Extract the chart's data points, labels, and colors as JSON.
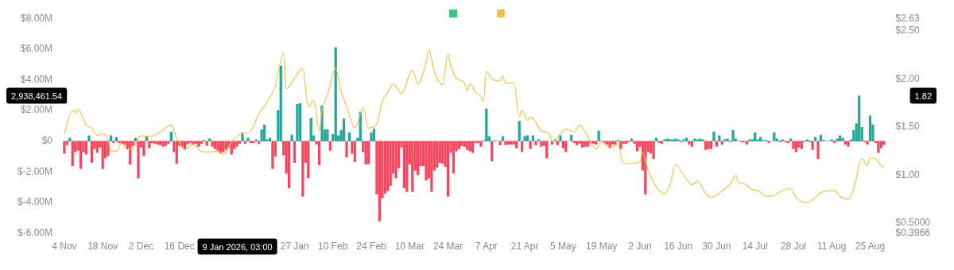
{
  "chart_data": {
    "type": "bar",
    "grid": false,
    "xlim": [
      "2025-11-02",
      "2026-09-01"
    ],
    "xticks": [
      {
        "value": "2025-11-04",
        "label": "4 Nov"
      },
      {
        "value": "2025-11-18",
        "label": "18 Nov"
      },
      {
        "value": "2025-12-02",
        "label": "2 Dec"
      },
      {
        "value": "2025-12-16",
        "label": "16 Dec"
      },
      {
        "value": "2026-01-27",
        "label": "27 Jan"
      },
      {
        "value": "2026-02-10",
        "label": "10 Feb"
      },
      {
        "value": "2026-02-24",
        "label": "24 Feb"
      },
      {
        "value": "2026-03-10",
        "label": "10 Mar"
      },
      {
        "value": "2026-03-24",
        "label": "24 Mar"
      },
      {
        "value": "2026-04-07",
        "label": "7 Apr"
      },
      {
        "value": "2026-04-21",
        "label": "21 Apr"
      },
      {
        "value": "2026-05-05",
        "label": "5 May"
      },
      {
        "value": "2026-05-19",
        "label": "19 May"
      },
      {
        "value": "2026-06-02",
        "label": "2 Jun"
      },
      {
        "value": "2026-06-16",
        "label": "16 Jun"
      },
      {
        "value": "2026-06-30",
        "label": "30 Jun"
      },
      {
        "value": "2026-07-14",
        "label": "14 Jul"
      },
      {
        "value": "2026-07-28",
        "label": "28 Jul"
      },
      {
        "value": "2026-08-11",
        "label": "11 Aug"
      },
      {
        "value": "2026-08-25",
        "label": "25 Aug"
      }
    ],
    "ylim": [
      -6,
      8
    ],
    "yticks": [
      {
        "value": -6,
        "label": "$-6.00M"
      },
      {
        "value": -4,
        "label": "$-4.00M"
      },
      {
        "value": -2,
        "label": "$-2.00M"
      },
      {
        "value": 0,
        "label": "$0"
      },
      {
        "value": 2,
        "label": "$2.00M"
      },
      {
        "value": 4,
        "label": "$4.00M"
      },
      {
        "value": 6,
        "label": "$6.00M"
      },
      {
        "value": 8,
        "label": "$8.00M"
      }
    ],
    "y2lim": [
      0.3966,
      2.63
    ],
    "y2ticks": [
      {
        "value": 0.3966,
        "label": "$0.3966"
      },
      {
        "value": 0.5,
        "label": "$0.5000"
      },
      {
        "value": 1,
        "label": "$1.00"
      },
      {
        "value": 1.5,
        "label": "$1.50"
      },
      {
        "value": 2,
        "label": "$2.00"
      },
      {
        "value": 2.5,
        "label": "$2.50"
      },
      {
        "value": 2.63,
        "label": "$2.63"
      }
    ],
    "annotations": [
      "2,938,461.54",
      "9 Jan 2026, 03:00",
      "1.82"
    ],
    "series": [
      {
        "color": "#35c97c",
        "x": [
          "2025-11-04",
          "2025-11-05",
          "2025-11-06",
          "2025-11-07",
          "2025-11-08",
          "2025-11-09",
          "2025-11-10",
          "2025-11-11",
          "2025-11-12",
          "2025-11-13",
          "2025-11-14",
          "2025-11-15",
          "2025-11-16",
          "2025-11-17",
          "2025-11-18",
          "2025-11-19",
          "2025-11-20",
          "2025-11-21",
          "2025-11-22",
          "2025-11-23",
          "2025-11-24",
          "2025-11-25",
          "2025-11-26",
          "2025-11-27",
          "2025-11-28",
          "2025-11-29",
          "2025-11-30",
          "2025-12-01",
          "2025-12-02",
          "2025-12-03",
          "2025-12-04",
          "2025-12-05",
          "2025-12-06",
          "2025-12-07",
          "2025-12-08",
          "2025-12-09",
          "2025-12-10",
          "2025-12-11",
          "2025-12-12",
          "2025-12-13",
          "2025-12-14",
          "2025-12-15",
          "2025-12-16",
          "2025-12-17",
          "2025-12-18",
          "2025-12-19",
          "2025-12-20",
          "2025-12-21",
          "2025-12-22",
          "2025-12-23",
          "2025-12-24",
          "2025-12-25",
          "2025-12-26",
          "2025-12-27",
          "2025-12-28",
          "2025-12-29",
          "2025-12-30",
          "2025-12-31",
          "2026-01-01",
          "2026-01-02",
          "2026-01-03",
          "2026-01-04",
          "2026-01-05",
          "2026-01-06",
          "2026-01-07",
          "2026-01-08",
          "2026-01-09",
          "2026-01-10",
          "2026-01-11",
          "2026-01-12",
          "2026-01-13",
          "2026-01-14",
          "2026-01-15",
          "2026-01-16",
          "2026-01-17",
          "2026-01-18",
          "2026-01-19",
          "2026-01-20",
          "2026-01-21",
          "2026-01-22",
          "2026-01-23",
          "2026-01-24",
          "2026-01-25",
          "2026-01-26",
          "2026-01-27",
          "2026-01-28",
          "2026-01-29",
          "2026-01-30",
          "2026-01-31",
          "2026-02-01",
          "2026-02-02",
          "2026-02-03",
          "2026-02-04",
          "2026-02-05",
          "2026-02-06",
          "2026-02-07",
          "2026-02-08",
          "2026-02-09",
          "2026-02-10",
          "2026-02-11",
          "2026-02-12",
          "2026-02-13",
          "2026-02-14",
          "2026-02-15",
          "2026-02-16",
          "2026-02-17",
          "2026-02-18",
          "2026-02-19",
          "2026-02-20",
          "2026-02-21",
          "2026-02-22",
          "2026-02-23",
          "2026-02-24",
          "2026-02-25",
          "2026-02-26",
          "2026-02-27",
          "2026-02-28",
          "2026-03-01",
          "2026-03-02",
          "2026-03-03",
          "2026-03-04",
          "2026-03-05",
          "2026-03-06",
          "2026-03-07",
          "2026-03-08",
          "2026-03-09",
          "2026-03-10",
          "2026-03-11",
          "2026-03-12",
          "2026-03-13",
          "2026-03-14",
          "2026-03-15",
          "2026-03-16",
          "2026-03-17",
          "2026-03-18",
          "2026-03-19",
          "2026-03-20",
          "2026-03-21",
          "2026-03-22",
          "2026-03-23",
          "2026-03-24",
          "2026-03-25",
          "2026-03-26",
          "2026-03-27",
          "2026-03-28",
          "2026-03-29",
          "2026-03-30",
          "2026-03-31",
          "2026-04-01",
          "2026-04-02",
          "2026-04-03",
          "2026-04-04",
          "2026-04-05",
          "2026-04-06",
          "2026-04-07",
          "2026-04-08",
          "2026-04-09",
          "2026-04-10",
          "2026-04-11",
          "2026-04-12",
          "2026-04-13",
          "2026-04-14",
          "2026-04-15",
          "2026-04-16",
          "2026-04-17",
          "2026-04-18",
          "2026-04-19",
          "2026-04-20",
          "2026-04-21",
          "2026-04-22",
          "2026-04-23",
          "2026-04-24",
          "2026-04-25",
          "2026-04-26",
          "2026-04-27",
          "2026-04-28",
          "2026-04-29",
          "2026-04-30",
          "2026-05-01",
          "2026-05-02",
          "2026-05-03",
          "2026-05-04",
          "2026-05-05",
          "2026-05-06",
          "2026-05-07",
          "2026-05-08",
          "2026-05-09",
          "2026-05-10",
          "2026-05-11",
          "2026-05-12",
          "2026-05-13",
          "2026-05-14",
          "2026-05-15",
          "2026-05-16",
          "2026-05-17",
          "2026-05-18",
          "2026-05-19",
          "2026-05-20",
          "2026-05-21",
          "2026-05-22",
          "2026-05-23",
          "2026-05-24",
          "2026-05-25",
          "2026-05-26",
          "2026-05-27",
          "2026-05-28",
          "2026-05-29",
          "2026-05-30",
          "2026-05-31",
          "2026-06-01",
          "2026-06-02",
          "2026-06-03",
          "2026-06-04",
          "2026-06-05",
          "2026-06-06",
          "2026-06-07",
          "2026-06-08",
          "2026-06-09",
          "2026-06-10",
          "2026-06-11",
          "2026-06-12",
          "2026-06-13",
          "2026-06-14",
          "2026-06-15",
          "2026-06-16",
          "2026-06-17",
          "2026-06-18",
          "2026-06-19",
          "2026-06-20",
          "2026-06-21",
          "2026-06-22",
          "2026-06-23",
          "2026-06-24",
          "2026-06-25",
          "2026-06-26",
          "2026-06-27",
          "2026-06-28",
          "2026-06-29",
          "2026-06-30",
          "2026-07-01",
          "2026-07-02",
          "2026-07-03",
          "2026-07-04",
          "2026-07-05",
          "2026-07-06",
          "2026-07-07",
          "2026-07-08",
          "2026-07-09",
          "2026-07-10",
          "2026-07-11",
          "2026-07-12",
          "2026-07-13",
          "2026-07-14",
          "2026-07-15",
          "2026-07-16",
          "2026-07-17",
          "2026-07-18",
          "2026-07-19",
          "2026-07-20",
          "2026-07-21",
          "2026-07-22",
          "2026-07-23",
          "2026-07-24",
          "2026-07-25",
          "2026-07-26",
          "2026-07-27",
          "2026-07-28",
          "2026-07-29",
          "2026-07-30",
          "2026-07-31",
          "2026-08-01",
          "2026-08-02",
          "2026-08-03",
          "2026-08-04",
          "2026-08-05",
          "2026-08-06",
          "2026-08-07",
          "2026-08-08",
          "2026-08-09",
          "2026-08-10",
          "2026-08-11",
          "2026-08-12",
          "2026-08-13",
          "2026-08-14",
          "2026-08-15",
          "2026-08-16",
          "2026-08-17",
          "2026-08-18",
          "2026-08-19",
          "2026-08-20",
          "2026-08-21",
          "2026-08-22",
          "2026-08-23",
          "2026-08-24",
          "2026-08-25",
          "2026-08-26",
          "2026-08-27",
          "2026-08-28",
          "2026-08-29",
          "2026-08-30"
        ],
        "values": [
          -0.8,
          -0.25,
          0.2,
          -1.6,
          -0.7,
          -0.6,
          -1.8,
          -0.7,
          -0.85,
          0.35,
          -1.4,
          -0.5,
          -0.75,
          -0.4,
          -1.8,
          -1.1,
          -0.95,
          0.35,
          -0.1,
          0.25,
          -0.1,
          -0.15,
          -0.2,
          -0.5,
          -1.5,
          -0.3,
          0.2,
          -2.4,
          -0.4,
          -0.95,
          0.3,
          -0.45,
          -0.1,
          -0.15,
          -0.2,
          -0.25,
          -0.35,
          -0.3,
          -0.15,
          0.6,
          -0.7,
          -1.45,
          -0.3,
          -0.4,
          -0.55,
          -0.2,
          -0.1,
          -0.2,
          -0.15,
          -0.35,
          -0.15,
          0.05,
          -0.3,
          0.15,
          -0.35,
          -0.5,
          -0.6,
          -0.8,
          -0.7,
          -0.55,
          -0.4,
          -0.85,
          -0.5,
          -0.35,
          -0.15,
          0.55,
          -0.15,
          0.2,
          -0.1,
          -0.1,
          0.1,
          -0.15,
          0.75,
          1.05,
          0.1,
          0.2,
          -1.8,
          -1.0,
          2.0,
          4.9,
          -0.9,
          -2.1,
          -3.05,
          0.4,
          -1.4,
          2.4,
          2.45,
          -3.6,
          -1.4,
          -2.4,
          1.5,
          0.35,
          -0.2,
          -1.55,
          2.3,
          0.75,
          0.75,
          -0.6,
          0.45,
          6.1,
          0.35,
          0.7,
          1.45,
          -1.05,
          0.55,
          -0.8,
          -1.35,
          0.2,
          1.9,
          -0.7,
          -1.5,
          -1.5,
          0.55,
          0.8,
          -3.45,
          -5.2,
          -3.7,
          -3.4,
          -3.25,
          -2.9,
          -2.1,
          -2.4,
          -1.75,
          -0.4,
          -3.05,
          -3.3,
          -1.5,
          -3.3,
          -1.9,
          -2.2,
          -1.6,
          -1.6,
          -2.55,
          -2.4,
          -3.3,
          -1.9,
          -1.7,
          -1.4,
          -1.45,
          -1.65,
          -3.6,
          -0.75,
          -2.1,
          -0.65,
          -0.5,
          -0.3,
          -0.35,
          -0.55,
          -0.65,
          -0.75,
          -0.1,
          -0.1,
          -0.35,
          0.05,
          2.1,
          0.3,
          -1.3,
          0.03,
          0,
          -0.25,
          0.3,
          -0.25,
          -0.2,
          -0.2,
          -0.2,
          -0.45,
          1.3,
          -0.7,
          0.3,
          0.35,
          -0.5,
          0.35,
          -0.25,
          0.1,
          -0.35,
          -0.3,
          -1.1,
          0,
          -0.2,
          0.1,
          -0.25,
          0.35,
          -0.45,
          -0.7,
          0,
          0.4,
          -0.1,
          -0.25,
          -0.15,
          -0.4,
          -0.35,
          -0.35,
          -0.1,
          -0.15,
          -0.2,
          0.65,
          0,
          -0.1,
          -0.2,
          -0.4,
          -0.2,
          -0.2,
          0.05,
          -0.5,
          -0.15,
          -0.15,
          -0.05,
          0.15,
          -0.15,
          -0.65,
          -0.35,
          -1.9,
          -3.45,
          -0.7,
          -0.8,
          -1.15,
          0.2,
          -0.1,
          -0.15,
          0.1,
          0.15,
          0.1,
          0.1,
          0.15,
          0.1,
          -0.05,
          0.1,
          0.2,
          -0.2,
          -0.35,
          0.15,
          0.1,
          0.15,
          0.1,
          -0.55,
          -0.5,
          -0.5,
          0.6,
          -0.35,
          0.35,
          -0.2,
          0.1,
          0.15,
          -0.05,
          0.7,
          0.15,
          0,
          -0.05,
          -0.05,
          -0.2,
          0.1,
          0.1,
          0.55,
          0.1,
          0.25,
          0.05,
          0.05,
          -0.1,
          0,
          0.55,
          0.15,
          -0.05,
          0.1,
          -0.05,
          -0.1,
          0.15,
          -0.5,
          -0.7,
          -0.4,
          -0.5,
          -0.05,
          0.1,
          -0.05,
          -0.55,
          0.25,
          -1.15,
          0.4,
          0.05,
          0,
          0,
          0.1,
          -0.1,
          0.15,
          0.35,
          0.2,
          -0.2,
          -0.35,
          0.1,
          0.7,
          1.15,
          2.94,
          0.9,
          -0.05,
          -0.2,
          1.65,
          1.05,
          -0.1,
          -0.75,
          -0.45,
          -0.25
        ],
        "colors": [
          "#f6465d",
          "#f6465d",
          "#26a69a",
          "#f6465d",
          "#f6465d",
          "#f6465d",
          "#f6465d",
          "#f6465d",
          "#f6465d",
          "#26a69a",
          "#f6465d",
          "#f6465d",
          "#f6465d",
          "#f6465d",
          "#f6465d",
          "#f6465d",
          "#f6465d",
          "#26a69a",
          "#f6465d",
          "#26a69a",
          "#f6465d",
          "#f6465d",
          "#f6465d",
          "#f6465d",
          "#f6465d",
          "#f6465d",
          "#26a69a",
          "#f6465d",
          "#f6465d",
          "#f6465d",
          "#26a69a",
          "#f6465d",
          "#f6465d",
          "#f6465d",
          "#f6465d",
          "#f6465d",
          "#f6465d",
          "#f6465d",
          "#f6465d",
          "#26a69a",
          "#f6465d",
          "#f6465d",
          "#f6465d",
          "#f6465d",
          "#f6465d",
          "#f6465d",
          "#f6465d",
          "#f6465d",
          "#f6465d",
          "#f6465d",
          "#f6465d",
          "#26a69a",
          "#f6465d",
          "#26a69a",
          "#f6465d",
          "#f6465d",
          "#f6465d",
          "#f6465d",
          "#f6465d",
          "#f6465d",
          "#f6465d",
          "#f6465d",
          "#f6465d",
          "#f6465d",
          "#f6465d",
          "#26a69a",
          "#f6465d",
          "#26a69a",
          "#f6465d",
          "#f6465d",
          "#26a69a",
          "#f6465d",
          "#26a69a",
          "#26a69a",
          "#26a69a",
          "#26a69a",
          "#f6465d",
          "#f6465d",
          "#26a69a",
          "#26a69a",
          "#f6465d",
          "#f6465d",
          "#f6465d",
          "#26a69a",
          "#f6465d",
          "#26a69a",
          "#26a69a",
          "#f6465d",
          "#f6465d",
          "#f6465d",
          "#26a69a",
          "#26a69a",
          "#f6465d",
          "#f6465d",
          "#26a69a",
          "#26a69a",
          "#26a69a",
          "#f6465d",
          "#26a69a",
          "#26a69a",
          "#26a69a",
          "#26a69a",
          "#26a69a",
          "#f6465d",
          "#26a69a",
          "#f6465d",
          "#f6465d",
          "#26a69a",
          "#26a69a",
          "#f6465d",
          "#f6465d",
          "#f6465d",
          "#26a69a",
          "#26a69a",
          "#f6465d",
          "#f6465d",
          "#f6465d",
          "#f6465d",
          "#f6465d",
          "#f6465d",
          "#f6465d",
          "#f6465d",
          "#f6465d",
          "#f6465d",
          "#f6465d",
          "#f6465d",
          "#f6465d",
          "#f6465d",
          "#f6465d",
          "#f6465d",
          "#f6465d",
          "#f6465d",
          "#f6465d",
          "#f6465d",
          "#f6465d",
          "#f6465d",
          "#f6465d",
          "#f6465d",
          "#f6465d",
          "#f6465d",
          "#f6465d",
          "#f6465d",
          "#f6465d",
          "#f6465d",
          "#f6465d",
          "#f6465d",
          "#f6465d",
          "#f6465d",
          "#f6465d",
          "#f6465d",
          "#f6465d",
          "#f6465d",
          "#f6465d",
          "#26a69a",
          "#26a69a",
          "#26a69a",
          "#f6465d",
          "#26a69a",
          "#26a69a",
          "#f6465d",
          "#26a69a",
          "#f6465d",
          "#f6465d",
          "#f6465d",
          "#f6465d",
          "#f6465d",
          "#26a69a",
          "#f6465d",
          "#26a69a",
          "#26a69a",
          "#f6465d",
          "#26a69a",
          "#f6465d",
          "#26a69a",
          "#f6465d",
          "#f6465d",
          "#f6465d",
          "#26a69a",
          "#f6465d",
          "#26a69a",
          "#f6465d",
          "#26a69a",
          "#f6465d",
          "#f6465d",
          "#26a69a",
          "#26a69a",
          "#f6465d",
          "#f6465d",
          "#f6465d",
          "#f6465d",
          "#f6465d",
          "#f6465d",
          "#f6465d",
          "#f6465d",
          "#f6465d",
          "#26a69a",
          "#26a69a",
          "#f6465d",
          "#f6465d",
          "#f6465d",
          "#f6465d",
          "#f6465d",
          "#26a69a",
          "#f6465d",
          "#f6465d",
          "#f6465d",
          "#f6465d",
          "#26a69a",
          "#f6465d",
          "#f6465d",
          "#f6465d",
          "#f6465d",
          "#f6465d",
          "#f6465d",
          "#f6465d",
          "#f6465d",
          "#26a69a",
          "#f6465d",
          "#f6465d",
          "#26a69a",
          "#26a69a",
          "#26a69a",
          "#26a69a",
          "#26a69a",
          "#26a69a",
          "#f6465d",
          "#26a69a",
          "#26a69a",
          "#f6465d",
          "#f6465d",
          "#26a69a",
          "#26a69a",
          "#26a69a",
          "#26a69a",
          "#f6465d",
          "#f6465d",
          "#f6465d",
          "#26a69a",
          "#f6465d",
          "#26a69a",
          "#f6465d",
          "#26a69a",
          "#26a69a",
          "#f6465d",
          "#26a69a",
          "#26a69a",
          "#26a69a",
          "#f6465d",
          "#f6465d",
          "#f6465d",
          "#26a69a",
          "#26a69a",
          "#26a69a",
          "#26a69a",
          "#26a69a",
          "#26a69a",
          "#26a69a",
          "#f6465d",
          "#26a69a",
          "#26a69a",
          "#26a69a",
          "#f6465d",
          "#26a69a",
          "#f6465d",
          "#f6465d",
          "#26a69a",
          "#f6465d",
          "#f6465d",
          "#f6465d",
          "#f6465d",
          "#f6465d",
          "#26a69a",
          "#f6465d",
          "#f6465d",
          "#26a69a",
          "#f6465d",
          "#26a69a",
          "#26a69a",
          "#26a69a",
          "#26a69a",
          "#26a69a",
          "#f6465d",
          "#26a69a",
          "#26a69a",
          "#26a69a",
          "#f6465d",
          "#f6465d",
          "#26a69a",
          "#26a69a",
          "#26a69a",
          "#26a69a",
          "#26a69a",
          "#f6465d",
          "#f6465d",
          "#26a69a",
          "#26a69a",
          "#f6465d",
          "#f6465d",
          "#f6465d",
          "#f6465d"
        ]
      },
      {
        "type": "line",
        "axis": "y2",
        "color": "#f0c14b",
        "marker": "none",
        "x": [
          "2025-11-04",
          "2025-11-07",
          "2025-11-08",
          "2025-11-09",
          "2025-11-11",
          "2025-11-12",
          "2025-11-14",
          "2025-11-16",
          "2025-11-18",
          "2025-11-20",
          "2025-11-21",
          "2025-11-23",
          "2025-11-25",
          "2025-11-27",
          "2025-11-29",
          "2025-12-02",
          "2025-12-05",
          "2025-12-08",
          "2025-12-11",
          "2025-12-13",
          "2025-12-15",
          "2025-12-18",
          "2025-12-21",
          "2025-12-24",
          "2025-12-27",
          "2025-12-30",
          "2026-01-01",
          "2026-01-04",
          "2026-01-08",
          "2026-01-11",
          "2026-01-14",
          "2026-01-17",
          "2026-01-20",
          "2026-01-23",
          "2026-01-24",
          "2026-01-27",
          "2026-01-30",
          "2026-02-01",
          "2026-02-03",
          "2026-02-05",
          "2026-02-06",
          "2026-02-08",
          "2026-02-11",
          "2026-02-13",
          "2026-02-15",
          "2026-02-18",
          "2026-02-21",
          "2026-02-23",
          "2026-02-26",
          "2026-02-28",
          "2026-03-02",
          "2026-03-04",
          "2026-03-07",
          "2026-03-11",
          "2026-03-13",
          "2026-03-16",
          "2026-03-17",
          "2026-03-19",
          "2026-03-22",
          "2026-03-24",
          "2026-03-25",
          "2026-03-27",
          "2026-03-30",
          "2026-03-31",
          "2026-04-01",
          "2026-04-03",
          "2026-04-05",
          "2026-04-06",
          "2026-04-07",
          "2026-04-09",
          "2026-04-12",
          "2026-04-13",
          "2026-04-14",
          "2026-04-17",
          "2026-04-19",
          "2026-04-20",
          "2026-04-22",
          "2026-04-23",
          "2026-04-25",
          "2026-04-27",
          "2026-04-30",
          "2026-05-01",
          "2026-05-04",
          "2026-05-06",
          "2026-05-09",
          "2026-05-11",
          "2026-05-14",
          "2026-05-17",
          "2026-05-19",
          "2026-05-22",
          "2026-05-25",
          "2026-05-27",
          "2026-05-29",
          "2026-06-02",
          "2026-06-03",
          "2026-06-05",
          "2026-06-08",
          "2026-06-11",
          "2026-06-13",
          "2026-06-15",
          "2026-06-18",
          "2026-06-21",
          "2026-06-23",
          "2026-06-26",
          "2026-06-28",
          "2026-07-01",
          "2026-07-03",
          "2026-07-05",
          "2026-07-07",
          "2026-07-08",
          "2026-07-10",
          "2026-07-13",
          "2026-07-15",
          "2026-07-18",
          "2026-07-21",
          "2026-07-24",
          "2026-07-27",
          "2026-07-29",
          "2026-08-02",
          "2026-08-05",
          "2026-08-08",
          "2026-08-12",
          "2026-08-14",
          "2026-08-17",
          "2026-08-19",
          "2026-08-22",
          "2026-08-24",
          "2026-08-25",
          "2026-08-27",
          "2026-08-29",
          "2026-08-30"
        ],
        "values": [
          1.43,
          1.67,
          1.65,
          1.69,
          1.58,
          1.52,
          1.49,
          1.41,
          1.43,
          1.37,
          1.25,
          1.25,
          1.33,
          1.27,
          1.28,
          1.41,
          1.4,
          1.43,
          1.49,
          1.52,
          1.39,
          1.27,
          1.32,
          1.25,
          1.24,
          1.25,
          1.21,
          1.35,
          1.43,
          1.46,
          1.64,
          1.76,
          1.93,
          2.27,
          1.9,
          2.01,
          2.11,
          1.71,
          1.78,
          1.46,
          1.67,
          1.83,
          2.11,
          1.87,
          1.72,
          1.49,
          1.7,
          1.49,
          1.53,
          1.77,
          1.86,
          1.95,
          1.85,
          2.09,
          1.95,
          2.17,
          2.3,
          2.08,
          1.94,
          2.26,
          2.14,
          2.01,
          1.96,
          1.88,
          1.95,
          1.86,
          1.82,
          1.77,
          2.08,
          2.0,
          1.98,
          2.03,
          1.96,
          1.96,
          1.61,
          1.67,
          1.57,
          1.6,
          1.55,
          1.46,
          1.43,
          1.35,
          1.43,
          1.48,
          1.45,
          1.52,
          1.4,
          1.27,
          1.35,
          1.28,
          1.32,
          1.12,
          1.12,
          1.14,
          1.24,
          1.05,
          0.88,
          0.81,
          0.9,
          1.11,
          1.0,
          0.9,
          0.94,
          0.81,
          0.77,
          0.81,
          0.86,
          0.91,
          1.0,
          0.92,
          0.91,
          0.85,
          0.84,
          0.78,
          0.79,
          0.84,
          0.86,
          0.77,
          0.71,
          0.77,
          0.83,
          0.84,
          0.78,
          0.75,
          0.86,
          1.17,
          1.1,
          1.18,
          1.17,
          1.1,
          1.08
        ]
      }
    ]
  }
}
